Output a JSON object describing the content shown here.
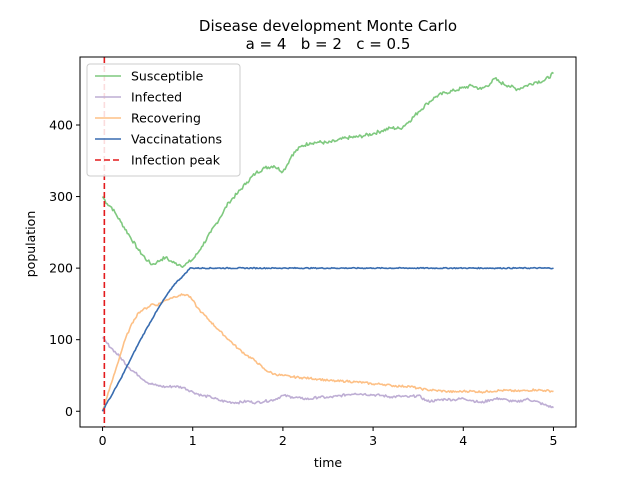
{
  "chart_data": {
    "type": "line",
    "title": "Disease development Monte Carlo",
    "subtitle": "a = 4   b = 2   c = 0.5",
    "xlabel": "time",
    "ylabel": "population",
    "xlim": [
      -0.25,
      5.25
    ],
    "ylim": [
      -22,
      495
    ],
    "xticks": [
      0,
      1,
      2,
      3,
      4,
      5
    ],
    "yticks": [
      0,
      100,
      200,
      300,
      400
    ],
    "grid": false,
    "legend_position": "upper-left",
    "series": [
      {
        "name": "Susceptible",
        "color": "#7fc97f",
        "style": "solid",
        "x": [
          0,
          0.05,
          0.1,
          0.15,
          0.2,
          0.3,
          0.4,
          0.5,
          0.55,
          0.6,
          0.65,
          0.7,
          0.75,
          0.8,
          0.85,
          0.9,
          0.95,
          1.0,
          1.05,
          1.1,
          1.2,
          1.3,
          1.4,
          1.5,
          1.6,
          1.7,
          1.8,
          1.9,
          2.0,
          2.05,
          2.1,
          2.2,
          2.3,
          2.4,
          2.5,
          2.6,
          2.7,
          2.8,
          2.9,
          3.0,
          3.1,
          3.2,
          3.3,
          3.4,
          3.5,
          3.6,
          3.7,
          3.8,
          3.9,
          4.0,
          4.1,
          4.2,
          4.3,
          4.35,
          4.4,
          4.5,
          4.6,
          4.7,
          4.8,
          4.9,
          5.0
        ],
        "y": [
          300,
          290,
          285,
          275,
          265,
          245,
          225,
          210,
          205,
          208,
          212,
          215,
          210,
          207,
          205,
          203,
          208,
          212,
          220,
          230,
          250,
          270,
          292,
          305,
          320,
          333,
          340,
          343,
          335,
          345,
          358,
          370,
          375,
          376,
          375,
          378,
          382,
          383,
          385,
          388,
          392,
          396,
          395,
          405,
          418,
          430,
          440,
          445,
          448,
          452,
          455,
          450,
          458,
          465,
          460,
          455,
          450,
          455,
          460,
          462,
          472
        ]
      },
      {
        "name": "Infected",
        "color": "#beaed4",
        "style": "solid",
        "x": [
          0,
          0.05,
          0.1,
          0.2,
          0.3,
          0.4,
          0.5,
          0.6,
          0.7,
          0.8,
          0.9,
          1.0,
          1.1,
          1.2,
          1.3,
          1.4,
          1.5,
          1.6,
          1.7,
          1.8,
          1.9,
          2.0,
          2.1,
          2.2,
          2.3,
          2.4,
          2.5,
          2.6,
          2.7,
          2.8,
          2.9,
          3.0,
          3.1,
          3.2,
          3.3,
          3.4,
          3.5,
          3.6,
          3.7,
          3.8,
          3.9,
          4.0,
          4.1,
          4.2,
          4.3,
          4.4,
          4.5,
          4.6,
          4.7,
          4.8,
          4.9,
          5.0
        ],
        "y": [
          103,
          95,
          88,
          75,
          60,
          50,
          40,
          36,
          34,
          35,
          33,
          27,
          22,
          20,
          15,
          13,
          12,
          14,
          12,
          14,
          16,
          22,
          20,
          18,
          17,
          20,
          19,
          21,
          23,
          25,
          24,
          23,
          22,
          20,
          21,
          20,
          22,
          14,
          15,
          17,
          16,
          18,
          15,
          12,
          16,
          18,
          15,
          13,
          17,
          14,
          9,
          5
        ]
      },
      {
        "name": "Recovering",
        "color": "#fdc086",
        "style": "solid",
        "x": [
          0,
          0.05,
          0.1,
          0.15,
          0.2,
          0.25,
          0.3,
          0.35,
          0.4,
          0.45,
          0.5,
          0.55,
          0.6,
          0.65,
          0.7,
          0.75,
          0.8,
          0.85,
          0.9,
          0.95,
          1.0,
          1.05,
          1.1,
          1.2,
          1.3,
          1.4,
          1.5,
          1.6,
          1.7,
          1.8,
          1.9,
          2.0,
          2.1,
          2.2,
          2.3,
          2.4,
          2.5,
          2.6,
          2.7,
          2.8,
          2.9,
          3.0,
          3.1,
          3.2,
          3.3,
          3.4,
          3.5,
          3.6,
          3.7,
          3.8,
          3.9,
          4.0,
          4.1,
          4.2,
          4.3,
          4.4,
          4.5,
          4.6,
          4.7,
          4.8,
          4.9,
          5.0
        ],
        "y": [
          0,
          20,
          40,
          60,
          80,
          100,
          115,
          128,
          138,
          142,
          145,
          150,
          148,
          152,
          155,
          158,
          160,
          162,
          163,
          162,
          155,
          145,
          138,
          125,
          112,
          100,
          88,
          78,
          70,
          58,
          52,
          50,
          48,
          47,
          46,
          45,
          43,
          42,
          42,
          41,
          40,
          38,
          38,
          36,
          35,
          35,
          32,
          30,
          29,
          28,
          27,
          28,
          28,
          27,
          28,
          29,
          29,
          28,
          29,
          30,
          29,
          28
        ]
      },
      {
        "name": "Vaccinatations",
        "color": "#386cb0",
        "style": "solid",
        "x": [
          0,
          0.05,
          0.1,
          0.2,
          0.3,
          0.4,
          0.5,
          0.6,
          0.7,
          0.8,
          0.9,
          0.97,
          1.0,
          2.0,
          3.0,
          4.0,
          5.0
        ],
        "y": [
          0,
          12,
          22,
          45,
          70,
          95,
          118,
          140,
          160,
          178,
          190,
          200,
          200,
          200,
          200,
          200,
          200
        ]
      }
    ],
    "vlines": [
      {
        "name": "Infection peak",
        "x": 0.02,
        "color": "#e31a1c",
        "style": "dashed"
      }
    ]
  }
}
